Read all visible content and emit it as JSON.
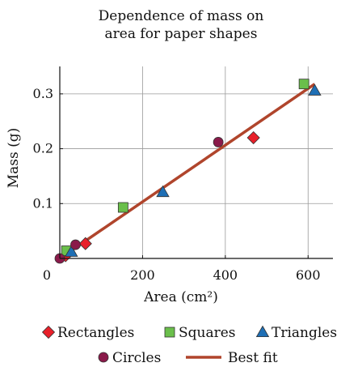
{
  "chart_data": {
    "type": "scatter",
    "title_lines": [
      "Dependence of mass on",
      "area for paper shapes"
    ],
    "xlabel": "Area (cm²)",
    "ylabel": "Mass (g)",
    "xlim": [
      0,
      660
    ],
    "ylim": [
      0,
      0.35
    ],
    "x_ticks": [
      0,
      200,
      400,
      600
    ],
    "y_ticks": [
      0.1,
      0.2,
      0.3
    ],
    "x_tick_labels": [
      "0",
      "200",
      "400",
      "600"
    ],
    "y_tick_labels": [
      "0.1",
      "0.2",
      "0.3"
    ],
    "grid": true,
    "legend": [
      "Rectangles",
      "Squares",
      "Triangles",
      "Circles",
      "Best fit"
    ],
    "series": [
      {
        "name": "Rectangles",
        "marker": "diamond",
        "color": "#e8202a",
        "points": [
          [
            14,
            0.005
          ],
          [
            62,
            0.027
          ],
          [
            468,
            0.22
          ]
        ]
      },
      {
        "name": "Squares",
        "marker": "square",
        "color": "#6abf4b",
        "points": [
          [
            16,
            0.014
          ],
          [
            153,
            0.093
          ],
          [
            590,
            0.318
          ]
        ]
      },
      {
        "name": "Triangles",
        "marker": "triangle",
        "color": "#1e6fb5",
        "points": [
          [
            28,
            0.012
          ],
          [
            249,
            0.121
          ],
          [
            616,
            0.306
          ]
        ]
      },
      {
        "name": "Circles",
        "marker": "circle",
        "color": "#8a1a4a",
        "points": [
          [
            0,
            0.0
          ],
          [
            38,
            0.025
          ],
          [
            383,
            0.212
          ]
        ]
      }
    ],
    "fit": {
      "name": "Best fit",
      "color": "#b0452c",
      "from": [
        0,
        0.0
      ],
      "to": [
        616,
        0.318
      ]
    }
  }
}
